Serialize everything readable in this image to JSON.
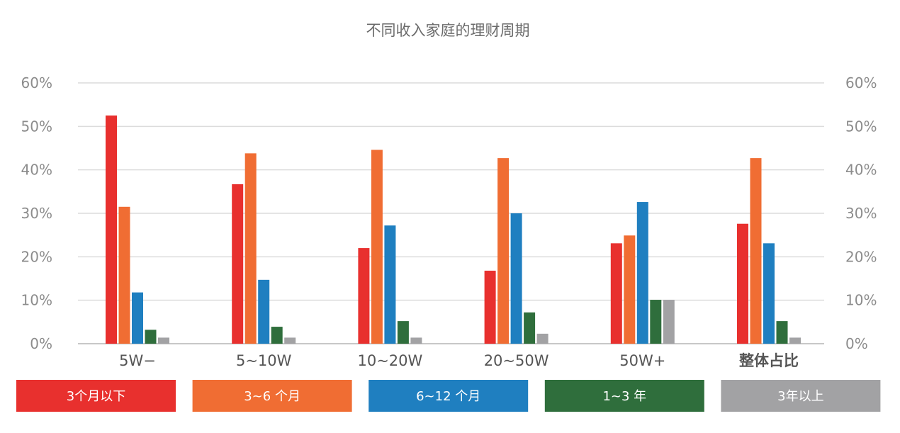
{
  "chart_data": {
    "type": "bar",
    "title": "不同收入家庭的理财周期",
    "categories": [
      "5W−",
      "5~10W",
      "10~20W",
      "20~50W",
      "50W+",
      "整体占比"
    ],
    "series": [
      {
        "name": "3个月以下",
        "color": "#e8302e",
        "values": [
          52.5,
          36.7,
          22.0,
          16.8,
          23.1,
          27.6
        ]
      },
      {
        "name": "3~6 个月",
        "color": "#f06d33",
        "values": [
          31.5,
          43.8,
          44.6,
          42.7,
          24.9,
          42.7
        ]
      },
      {
        "name": "6~12 个月",
        "color": "#1f7fc0",
        "values": [
          11.8,
          14.7,
          27.2,
          30.0,
          32.6,
          23.1
        ]
      },
      {
        "name": "1~3 年",
        "color": "#2f6e3c",
        "values": [
          3.2,
          3.9,
          5.2,
          7.2,
          10.1,
          5.2
        ]
      },
      {
        "name": "3年以上",
        "color": "#a2a2a4",
        "values": [
          1.4,
          1.4,
          1.4,
          2.3,
          10.1,
          1.4
        ]
      }
    ],
    "yticks": [
      "0%",
      "10%",
      "20%",
      "30%",
      "40%",
      "50%",
      "60%"
    ],
    "ylim": [
      0,
      60
    ],
    "grid": true,
    "legend_position": "bottom"
  }
}
